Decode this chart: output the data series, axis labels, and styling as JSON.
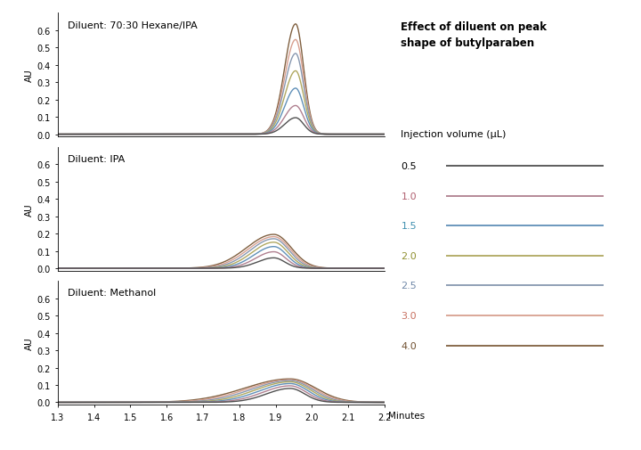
{
  "title": "Effect of diluent on peak\nshape of butylparaben",
  "legend_title": "Injection volume (μL)",
  "legend_labels": [
    "0.5",
    "1.0",
    "1.5",
    "2.0",
    "2.5",
    "3.0",
    "4.0"
  ],
  "legend_colors": [
    "#505050",
    "#b08090",
    "#6090b8",
    "#b0a860",
    "#8898b0",
    "#d8a090",
    "#806040"
  ],
  "legend_label_colors": [
    "#000000",
    "#b06070",
    "#4090b0",
    "#909030",
    "#7088a8",
    "#c87060",
    "#705030"
  ],
  "subplot_titles": [
    "Diluent: 70:30 Hexane/IPA",
    "Diluent: IPA",
    "Diluent: Methanol"
  ],
  "ylabel": "AU",
  "xlabel": "Minutes",
  "xmin": 1.3,
  "xmax": 2.2,
  "xticks": [
    1.3,
    1.4,
    1.5,
    1.6,
    1.7,
    1.8,
    1.9,
    2.0,
    2.1,
    2.2
  ],
  "yticks": [
    0.0,
    0.1,
    0.2,
    0.3,
    0.4,
    0.5,
    0.6
  ],
  "background_color": "#ffffff",
  "panel1_peaks": {
    "centers": [
      1.955,
      1.955,
      1.955,
      1.955,
      1.955,
      1.955,
      1.955
    ],
    "heights": [
      0.095,
      0.165,
      0.265,
      0.365,
      0.465,
      0.545,
      0.635
    ],
    "widths_left": [
      0.03,
      0.03,
      0.03,
      0.03,
      0.03,
      0.03,
      0.03
    ],
    "widths_right": [
      0.022,
      0.022,
      0.022,
      0.022,
      0.022,
      0.022,
      0.022
    ]
  },
  "panel2_peaks": {
    "centers": [
      1.895,
      1.895,
      1.895,
      1.895,
      1.895,
      1.895,
      1.895
    ],
    "heights": [
      0.06,
      0.095,
      0.125,
      0.15,
      0.17,
      0.182,
      0.195
    ],
    "widths_left": [
      0.045,
      0.05,
      0.055,
      0.06,
      0.065,
      0.07,
      0.075
    ],
    "widths_right": [
      0.03,
      0.033,
      0.036,
      0.039,
      0.042,
      0.045,
      0.048
    ]
  },
  "panel3_peaks": {
    "centers": [
      1.94,
      1.94,
      1.94,
      1.94,
      1.94,
      1.94,
      1.94
    ],
    "heights": [
      0.08,
      0.095,
      0.108,
      0.118,
      0.125,
      0.13,
      0.135
    ],
    "widths_left": [
      0.065,
      0.075,
      0.085,
      0.095,
      0.105,
      0.115,
      0.125
    ],
    "widths_right": [
      0.04,
      0.045,
      0.05,
      0.055,
      0.06,
      0.065,
      0.07
    ]
  }
}
